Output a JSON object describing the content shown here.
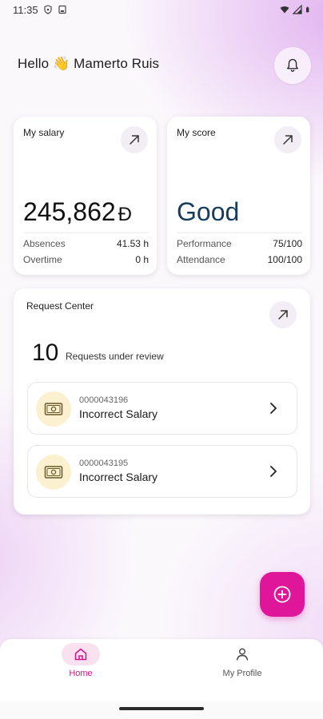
{
  "status_bar": {
    "time": "11:35",
    "icons": [
      "shield-status-icon",
      "storage-status-icon",
      "wifi-icon",
      "signal-icon",
      "battery-icon"
    ]
  },
  "header": {
    "greeting": "Hello 👋 Mamerto Ruis",
    "bell_icon": "bell-icon"
  },
  "salary_card": {
    "title": "My salary",
    "amount": "245,862",
    "currency_symbol": "Ð",
    "rows": [
      {
        "label": "Absences",
        "value": "41.53 h"
      },
      {
        "label": "Overtime",
        "value": "0 h"
      }
    ]
  },
  "score_card": {
    "title": "My score",
    "value": "Good",
    "rows": [
      {
        "label": "Performance",
        "value": "75/100"
      },
      {
        "label": "Attendance",
        "value": "100/100"
      }
    ]
  },
  "request_center": {
    "title": "Request Center",
    "count": "10",
    "count_label": "Requests under review",
    "items": [
      {
        "id": "0000043196",
        "title": "Incorrect Salary",
        "icon": "money-bill-icon"
      },
      {
        "id": "0000043195",
        "title": "Incorrect Salary",
        "icon": "money-bill-icon"
      }
    ]
  },
  "fab": {
    "icon": "add-circle-icon"
  },
  "bottom_nav": {
    "items": [
      {
        "label": "Home",
        "icon": "home-icon",
        "active": true
      },
      {
        "label": "My Profile",
        "icon": "profile-icon",
        "active": false
      }
    ]
  },
  "colors": {
    "accent": "#e0169a",
    "score_text": "#173d5e",
    "request_icon_bg": "#fbf0d0",
    "nav_active_bg": "#f9e1f0"
  }
}
